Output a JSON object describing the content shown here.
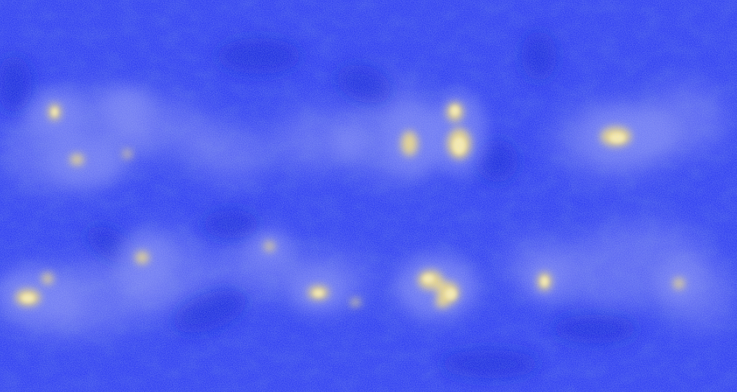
{
  "image": {
    "kind": "equirectangular-intensity-map",
    "colors": {
      "background": "#2a3bf0",
      "deep": "#1622d8",
      "light": "#6f7cf2",
      "haze": "#a8b0f4",
      "highlight": "#f2dc7a",
      "core": "#fff2a8"
    }
  }
}
